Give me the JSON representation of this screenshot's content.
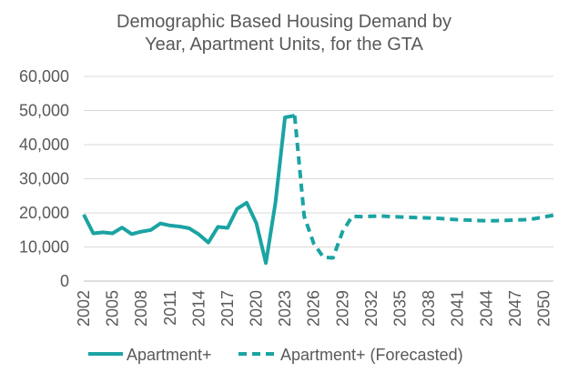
{
  "chart_data": {
    "type": "line",
    "title_lines": [
      "Demographic Based Housing Demand by",
      "Year, Apartment Units, for the GTA"
    ],
    "xlabel": "",
    "ylabel": "",
    "ylim": [
      0,
      60000
    ],
    "y_ticks": [
      "60,000",
      "50,000",
      "40,000",
      "30,000",
      "20,000",
      "10,000",
      "0"
    ],
    "y_tick_values": [
      60000,
      50000,
      40000,
      30000,
      20000,
      10000,
      0
    ],
    "x_range": [
      2002,
      2051
    ],
    "x_tick_labels": [
      "2002",
      "2005",
      "2008",
      "2011",
      "2014",
      "2017",
      "2020",
      "2023",
      "2026",
      "2029",
      "2032",
      "2035",
      "2038",
      "2041",
      "2044",
      "2047",
      "2050"
    ],
    "grid": "horizontal",
    "legend_position": "bottom",
    "series": [
      {
        "name": "Apartment+",
        "style": "solid",
        "color": "#1ba3a3",
        "x": [
          2002,
          2003,
          2004,
          2005,
          2006,
          2007,
          2008,
          2009,
          2010,
          2011,
          2012,
          2013,
          2014,
          2015,
          2016,
          2017,
          2018,
          2019,
          2020,
          2021,
          2022,
          2023,
          2024
        ],
        "y": [
          19500,
          14000,
          14300,
          14000,
          15700,
          13800,
          14500,
          15000,
          16900,
          16300,
          16000,
          15500,
          13700,
          11300,
          15900,
          15600,
          21200,
          23000,
          17000,
          5300,
          23000,
          48000,
          48500
        ]
      },
      {
        "name": "Apartment+ (Forecasted)",
        "style": "dashed",
        "color": "#1ba3a3",
        "x": [
          2024,
          2025,
          2026,
          2027,
          2028,
          2029,
          2030,
          2031,
          2032,
          2033,
          2034,
          2035,
          2036,
          2037,
          2038,
          2039,
          2040,
          2041,
          2042,
          2043,
          2044,
          2045,
          2046,
          2047,
          2048,
          2049,
          2050,
          2051
        ],
        "y": [
          48500,
          19000,
          11000,
          7000,
          6800,
          14500,
          19000,
          18900,
          19000,
          19100,
          18900,
          18800,
          18700,
          18600,
          18500,
          18400,
          18200,
          18000,
          17900,
          17800,
          17700,
          17700,
          17800,
          17900,
          18000,
          18300,
          18800,
          19300
        ]
      }
    ]
  }
}
